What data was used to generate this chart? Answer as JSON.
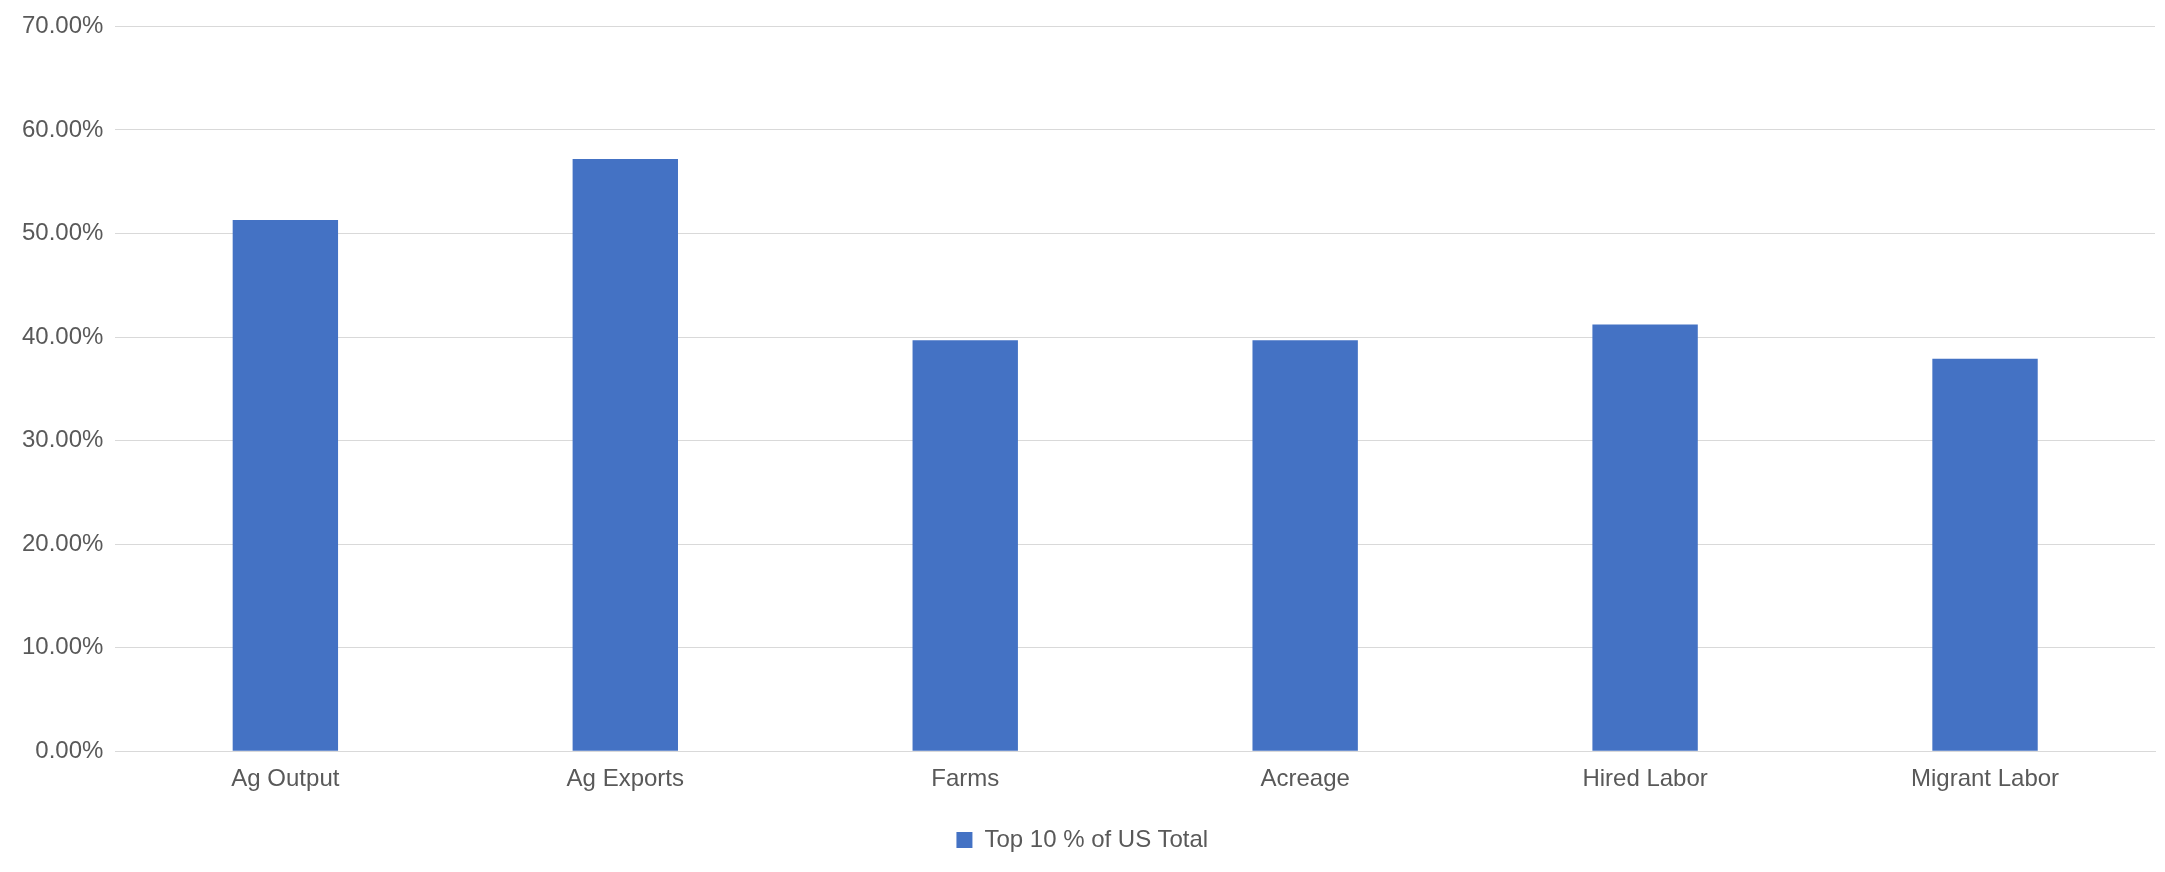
{
  "chart_data": {
    "type": "bar",
    "categories": [
      "Ag Output",
      "Ag Exports",
      "Farms",
      "Acreage",
      "Hired Labor",
      "Migrant Labor"
    ],
    "series": [
      {
        "name": "Top 10 % of US Total",
        "color": "#4472c4",
        "values": [
          51.3,
          57.2,
          39.7,
          39.7,
          41.2,
          37.9
        ]
      }
    ],
    "ylim": [
      0,
      70
    ],
    "yticks": [
      {
        "value": 0,
        "label": "0.00%"
      },
      {
        "value": 10,
        "label": "10.00%"
      },
      {
        "value": 20,
        "label": "20.00%"
      },
      {
        "value": 30,
        "label": "30.00%"
      },
      {
        "value": 40,
        "label": "40.00%"
      },
      {
        "value": 50,
        "label": "50.00%"
      },
      {
        "value": 60,
        "label": "60.00%"
      },
      {
        "value": 70,
        "label": "70.00%"
      }
    ],
    "grid": "y",
    "legend": "bottom"
  }
}
